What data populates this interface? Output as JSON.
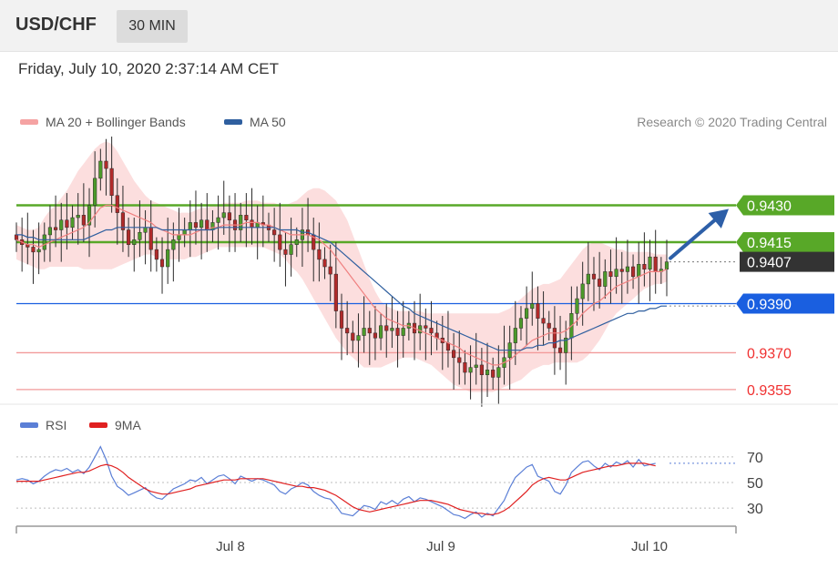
{
  "header": {
    "symbol": "USD/CHF",
    "timeframe": "30 MIN"
  },
  "datetime": "Friday, July 10, 2020 2:37:14 AM CET",
  "legend": {
    "ma20_label": "MA 20 + Bollinger Bands",
    "ma20_color": "#f08080",
    "ma50_label": "MA 50",
    "ma50_color": "#2f5f9f"
  },
  "credit": "Research © 2020 Trading Central",
  "rsi_legend": {
    "rsi_label": "RSI",
    "rsi_color": "#5b7fd6",
    "ma_label": "9MA",
    "ma_color": "#e02020"
  },
  "chart_data": [
    {
      "type": "candlestick",
      "title": "USD/CHF",
      "ylim": [
        0.9352,
        0.9458
      ],
      "x_ticks": [
        "Jul 8",
        "Jul 9",
        "Jul 10"
      ],
      "levels": [
        {
          "label": "0.9430",
          "value": 0.943,
          "style": "resistance",
          "color": "#58a828"
        },
        {
          "label": "0.9415",
          "value": 0.9415,
          "style": "resistance",
          "color": "#58a828"
        },
        {
          "label": "0.9407",
          "value": 0.9407,
          "style": "last-price",
          "color": "#333333"
        },
        {
          "label": "0.9390",
          "value": 0.939,
          "style": "pivot",
          "color": "#1a5fe0"
        },
        {
          "label": "0.9370",
          "value": 0.937,
          "style": "support",
          "color": "#f04040"
        },
        {
          "label": "0.9355",
          "value": 0.9355,
          "style": "support",
          "color": "#f04040"
        }
      ],
      "forecast_arrow": {
        "from": 0.9407,
        "to": 0.943,
        "color": "#2d5fa8"
      },
      "close_series": [
        0.9416,
        0.9414,
        0.9413,
        0.9411,
        0.9412,
        0.9418,
        0.9421,
        0.942,
        0.9424,
        0.9421,
        0.9425,
        0.9426,
        0.9422,
        0.943,
        0.9441,
        0.9448,
        0.9445,
        0.9434,
        0.9427,
        0.942,
        0.9414,
        0.9416,
        0.9419,
        0.9421,
        0.9412,
        0.9408,
        0.9405,
        0.9412,
        0.9416,
        0.9418,
        0.942,
        0.9423,
        0.9421,
        0.9424,
        0.942,
        0.9423,
        0.9425,
        0.9427,
        0.9424,
        0.942,
        0.9426,
        0.9424,
        0.9421,
        0.9423,
        0.9422,
        0.942,
        0.9418,
        0.9412,
        0.941,
        0.9414,
        0.9416,
        0.942,
        0.9418,
        0.9412,
        0.9408,
        0.9405,
        0.9402,
        0.9387,
        0.938,
        0.9378,
        0.9375,
        0.9377,
        0.938,
        0.9378,
        0.9376,
        0.9381,
        0.9379,
        0.938,
        0.9377,
        0.938,
        0.9382,
        0.9378,
        0.9381,
        0.938,
        0.9378,
        0.9376,
        0.9374,
        0.9371,
        0.9368,
        0.9366,
        0.9362,
        0.9364,
        0.9365,
        0.9361,
        0.9363,
        0.936,
        0.9364,
        0.9368,
        0.9374,
        0.938,
        0.9384,
        0.9388,
        0.939,
        0.9384,
        0.9382,
        0.938,
        0.9372,
        0.937,
        0.9376,
        0.9386,
        0.9392,
        0.9398,
        0.9402,
        0.94,
        0.9397,
        0.9403,
        0.9401,
        0.9404,
        0.9403,
        0.9405,
        0.9401,
        0.9406,
        0.9404,
        0.9409,
        0.9403,
        0.9404,
        0.9407
      ],
      "ma20": [
        0.9416,
        0.9415,
        0.9414,
        0.9414,
        0.9413,
        0.9414,
        0.9415,
        0.9416,
        0.9417,
        0.9418,
        0.9419,
        0.942,
        0.9421,
        0.9423,
        0.9426,
        0.9429,
        0.943,
        0.943,
        0.9429,
        0.9428,
        0.9427,
        0.9426,
        0.9425,
        0.9424,
        0.9423,
        0.9421,
        0.942,
        0.9419,
        0.9418,
        0.9418,
        0.9418,
        0.9418,
        0.9419,
        0.942,
        0.942,
        0.9421,
        0.9421,
        0.9422,
        0.9422,
        0.9422,
        0.9422,
        0.9423,
        0.9423,
        0.9423,
        0.9422,
        0.9422,
        0.9421,
        0.942,
        0.9419,
        0.9418,
        0.9418,
        0.9418,
        0.9418,
        0.9417,
        0.9416,
        0.9414,
        0.9412,
        0.9409,
        0.9406,
        0.9403,
        0.94,
        0.9397,
        0.9394,
        0.9391,
        0.9388,
        0.9386,
        0.9384,
        0.9383,
        0.9382,
        0.9381,
        0.9381,
        0.938,
        0.9379,
        0.9378,
        0.9377,
        0.9376,
        0.9375,
        0.9374,
        0.9373,
        0.9372,
        0.937,
        0.9369,
        0.9368,
        0.9367,
        0.9366,
        0.9365,
        0.9365,
        0.9366,
        0.9367,
        0.9369,
        0.9371,
        0.9373,
        0.9375,
        0.9376,
        0.9377,
        0.9378,
        0.9378,
        0.9378,
        0.9379,
        0.9381,
        0.9383,
        0.9386,
        0.9388,
        0.939,
        0.9391,
        0.9393,
        0.9395,
        0.9397,
        0.9398,
        0.9399,
        0.94,
        0.9401,
        0.9402,
        0.9403,
        0.9403,
        0.9403,
        0.9404
      ],
      "ma50": [
        0.9418,
        0.9418,
        0.9417,
        0.9417,
        0.9416,
        0.9416,
        0.9416,
        0.9416,
        0.9416,
        0.9416,
        0.9416,
        0.9416,
        0.9416,
        0.9417,
        0.9418,
        0.9419,
        0.942,
        0.942,
        0.9421,
        0.9421,
        0.9421,
        0.9421,
        0.9421,
        0.9421,
        0.9421,
        0.9421,
        0.942,
        0.942,
        0.942,
        0.942,
        0.942,
        0.942,
        0.942,
        0.942,
        0.942,
        0.942,
        0.9421,
        0.9421,
        0.9421,
        0.9421,
        0.9421,
        0.9421,
        0.9421,
        0.9421,
        0.9421,
        0.9421,
        0.9421,
        0.942,
        0.942,
        0.942,
        0.942,
        0.9419,
        0.9419,
        0.9418,
        0.9417,
        0.9416,
        0.9415,
        0.9413,
        0.9411,
        0.9409,
        0.9407,
        0.9405,
        0.9403,
        0.9401,
        0.9399,
        0.9397,
        0.9395,
        0.9393,
        0.9391,
        0.9389,
        0.9388,
        0.9386,
        0.9385,
        0.9384,
        0.9383,
        0.9382,
        0.9381,
        0.938,
        0.9379,
        0.9378,
        0.9377,
        0.9376,
        0.9375,
        0.9374,
        0.9373,
        0.9372,
        0.9371,
        0.9371,
        0.9371,
        0.9371,
        0.9371,
        0.9372,
        0.9372,
        0.9373,
        0.9373,
        0.9374,
        0.9374,
        0.9375,
        0.9375,
        0.9376,
        0.9377,
        0.9378,
        0.9379,
        0.938,
        0.9381,
        0.9382,
        0.9383,
        0.9384,
        0.9385,
        0.9386,
        0.9386,
        0.9387,
        0.9387,
        0.9388,
        0.9388,
        0.9389,
        0.9389
      ],
      "bb_upper": [
        0.9422,
        0.9421,
        0.942,
        0.942,
        0.9421,
        0.9425,
        0.9428,
        0.943,
        0.9433,
        0.9436,
        0.944,
        0.9444,
        0.9447,
        0.945,
        0.9453,
        0.9455,
        0.9456,
        0.9455,
        0.9452,
        0.9448,
        0.9444,
        0.944,
        0.9437,
        0.9434,
        0.9432,
        0.9431,
        0.943,
        0.9429,
        0.9428,
        0.9427,
        0.9427,
        0.9427,
        0.9428,
        0.9429,
        0.9429,
        0.943,
        0.943,
        0.9431,
        0.9431,
        0.9431,
        0.9431,
        0.9432,
        0.9432,
        0.9432,
        0.9431,
        0.9431,
        0.9431,
        0.943,
        0.943,
        0.9431,
        0.9432,
        0.9434,
        0.9436,
        0.9437,
        0.9437,
        0.9436,
        0.9434,
        0.9432,
        0.9428,
        0.9424,
        0.9418,
        0.9412,
        0.9406,
        0.94,
        0.9395,
        0.9391,
        0.9389,
        0.9388,
        0.9387,
        0.9387,
        0.9387,
        0.9387,
        0.9387,
        0.9386,
        0.9386,
        0.9386,
        0.9386,
        0.9386,
        0.9386,
        0.9386,
        0.9386,
        0.9386,
        0.9386,
        0.9386,
        0.9386,
        0.9386,
        0.9386,
        0.9387,
        0.9388,
        0.939,
        0.9392,
        0.9394,
        0.9396,
        0.9397,
        0.9398,
        0.9398,
        0.9399,
        0.94,
        0.9403,
        0.9406,
        0.9409,
        0.9412,
        0.9414,
        0.9415,
        0.9415,
        0.9414,
        0.9413,
        0.9412,
        0.9412,
        0.9411,
        0.9411,
        0.9411,
        0.9411,
        0.9411,
        0.941,
        0.941,
        0.941
      ],
      "bb_lower": [
        0.9408,
        0.9407,
        0.9406,
        0.9405,
        0.9404,
        0.9404,
        0.9405,
        0.9405,
        0.9405,
        0.9405,
        0.9405,
        0.9405,
        0.9404,
        0.9404,
        0.9404,
        0.9404,
        0.9404,
        0.9404,
        0.9405,
        0.9406,
        0.9407,
        0.9408,
        0.9409,
        0.941,
        0.941,
        0.9409,
        0.9408,
        0.9408,
        0.9408,
        0.9408,
        0.9408,
        0.9409,
        0.9409,
        0.941,
        0.9411,
        0.9412,
        0.9413,
        0.9413,
        0.9413,
        0.9413,
        0.9413,
        0.9413,
        0.9413,
        0.9413,
        0.9413,
        0.9412,
        0.9411,
        0.941,
        0.9408,
        0.9405,
        0.9403,
        0.94,
        0.9396,
        0.9392,
        0.9388,
        0.9384,
        0.938,
        0.9376,
        0.9373,
        0.937,
        0.9368,
        0.9366,
        0.9364,
        0.9364,
        0.9364,
        0.9364,
        0.9365,
        0.9366,
        0.9367,
        0.9368,
        0.9368,
        0.9368,
        0.9367,
        0.9366,
        0.9365,
        0.9363,
        0.9361,
        0.9359,
        0.9357,
        0.9356,
        0.9355,
        0.9354,
        0.9354,
        0.9354,
        0.9354,
        0.9354,
        0.9355,
        0.9356,
        0.9357,
        0.9358,
        0.9359,
        0.9361,
        0.9363,
        0.9364,
        0.9365,
        0.9365,
        0.9366,
        0.9366,
        0.9366,
        0.9366,
        0.9366,
        0.9367,
        0.9369,
        0.9372,
        0.9375,
        0.9379,
        0.9383,
        0.9386,
        0.9388,
        0.939,
        0.9392,
        0.9394,
        0.9396,
        0.9397,
        0.9398,
        0.9398,
        0.9399
      ]
    },
    {
      "type": "line",
      "title": "RSI",
      "ylim": [
        18,
        82
      ],
      "y_ticks": [
        70,
        50,
        30
      ],
      "series": [
        {
          "name": "RSI",
          "values": [
            52,
            53,
            52,
            49,
            51,
            55,
            58,
            60,
            59,
            61,
            58,
            60,
            57,
            62,
            70,
            78,
            68,
            55,
            47,
            44,
            40,
            42,
            44,
            46,
            41,
            38,
            37,
            41,
            45,
            47,
            49,
            52,
            51,
            54,
            49,
            52,
            55,
            56,
            53,
            49,
            55,
            53,
            51,
            53,
            52,
            50,
            48,
            43,
            41,
            45,
            47,
            50,
            48,
            43,
            40,
            38,
            37,
            32,
            26,
            25,
            24,
            28,
            32,
            31,
            29,
            35,
            33,
            36,
            33,
            37,
            39,
            35,
            38,
            37,
            35,
            33,
            31,
            28,
            25,
            24,
            22,
            25,
            27,
            23,
            26,
            24,
            30,
            36,
            46,
            54,
            58,
            62,
            64,
            55,
            53,
            51,
            43,
            41,
            48,
            58,
            62,
            66,
            67,
            63,
            60,
            65,
            62,
            66,
            64,
            67,
            62,
            68,
            63,
            64,
            65
          ]
        },
        {
          "name": "9MA",
          "values": [
            51,
            51,
            51,
            51,
            51,
            52,
            53,
            54,
            55,
            56,
            57,
            58,
            58,
            59,
            61,
            63,
            64,
            63,
            61,
            58,
            54,
            51,
            48,
            45,
            43,
            42,
            41,
            41,
            42,
            43,
            44,
            45,
            47,
            48,
            49,
            50,
            51,
            52,
            52,
            52,
            53,
            53,
            53,
            53,
            53,
            52,
            51,
            50,
            49,
            48,
            47,
            47,
            46,
            46,
            45,
            44,
            42,
            40,
            37,
            34,
            31,
            29,
            28,
            27,
            28,
            29,
            30,
            31,
            32,
            33,
            34,
            35,
            36,
            36,
            36,
            35,
            34,
            33,
            31,
            29,
            28,
            27,
            26,
            26,
            25,
            25,
            26,
            28,
            31,
            35,
            39,
            43,
            48,
            51,
            53,
            54,
            53,
            52,
            52,
            54,
            56,
            58,
            59,
            60,
            61,
            62,
            63,
            63,
            64,
            65,
            65,
            65,
            65,
            64,
            63
          ]
        }
      ]
    }
  ]
}
